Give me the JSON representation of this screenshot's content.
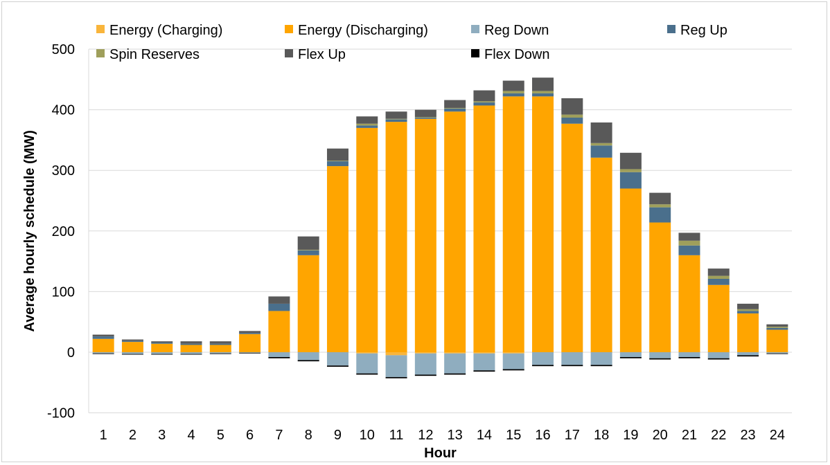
{
  "chart_data": {
    "type": "bar",
    "stacked": true,
    "xlabel": "Hour",
    "ylabel": "Average hourly schedule (MW)",
    "ylim": [
      -100,
      500
    ],
    "yticks": [
      -100,
      0,
      100,
      200,
      300,
      400,
      500
    ],
    "grid": true,
    "legend_position": "top",
    "categories": [
      "1",
      "2",
      "3",
      "4",
      "5",
      "6",
      "7",
      "8",
      "9",
      "10",
      "11",
      "12",
      "13",
      "14",
      "15",
      "16",
      "17",
      "18",
      "19",
      "20",
      "21",
      "22",
      "23",
      "24"
    ],
    "series": [
      {
        "name": "Energy (Charging)",
        "color": "#f9b53b",
        "values": [
          0,
          0,
          0,
          0,
          0,
          0,
          0,
          0,
          0,
          -2,
          -5,
          -2,
          -2,
          -2,
          -2,
          0,
          0,
          0,
          0,
          0,
          0,
          0,
          0,
          0
        ]
      },
      {
        "name": "Energy (Discharging)",
        "color": "#ffa500",
        "values": [
          22,
          17,
          14,
          12,
          12,
          30,
          68,
          160,
          307,
          370,
          380,
          385,
          397,
          407,
          422,
          422,
          377,
          321,
          270,
          214,
          160,
          111,
          64,
          37
        ]
      },
      {
        "name": "Reg Down",
        "color": "#8fadbf",
        "values": [
          -2,
          -3,
          -3,
          -3,
          -2,
          -1,
          -8,
          -13,
          -22,
          -33,
          -36,
          -35,
          -33,
          -28,
          -26,
          -21,
          -21,
          -21,
          -8,
          -10,
          -8,
          -10,
          -5,
          -2
        ]
      },
      {
        "name": "Reg Up",
        "color": "#4a6f8c",
        "values": [
          4,
          2,
          2,
          2,
          2,
          2,
          12,
          8,
          8,
          4,
          4,
          2,
          5,
          5,
          5,
          5,
          10,
          20,
          27,
          25,
          16,
          10,
          4,
          3
        ]
      },
      {
        "name": "Spin Reserves",
        "color": "#9f9f5b",
        "values": [
          0,
          0,
          0,
          0,
          0,
          0,
          0,
          1,
          1,
          3,
          1,
          1,
          1,
          2,
          4,
          4,
          5,
          4,
          5,
          5,
          8,
          5,
          3,
          2
        ]
      },
      {
        "name": "Flex Up",
        "color": "#595959",
        "values": [
          3,
          2,
          2,
          4,
          4,
          3,
          12,
          22,
          20,
          12,
          12,
          12,
          13,
          18,
          17,
          22,
          27,
          34,
          27,
          19,
          13,
          12,
          9,
          4
        ]
      },
      {
        "name": "Flex Down",
        "color": "#000000",
        "values": [
          -1,
          -1,
          -1,
          -1,
          -1,
          -1,
          -2,
          -2,
          -2,
          -2,
          -2,
          -2,
          -2,
          -2,
          -2,
          -2,
          -2,
          -2,
          -2,
          -2,
          -2,
          -2,
          -2,
          -1
        ]
      }
    ]
  }
}
